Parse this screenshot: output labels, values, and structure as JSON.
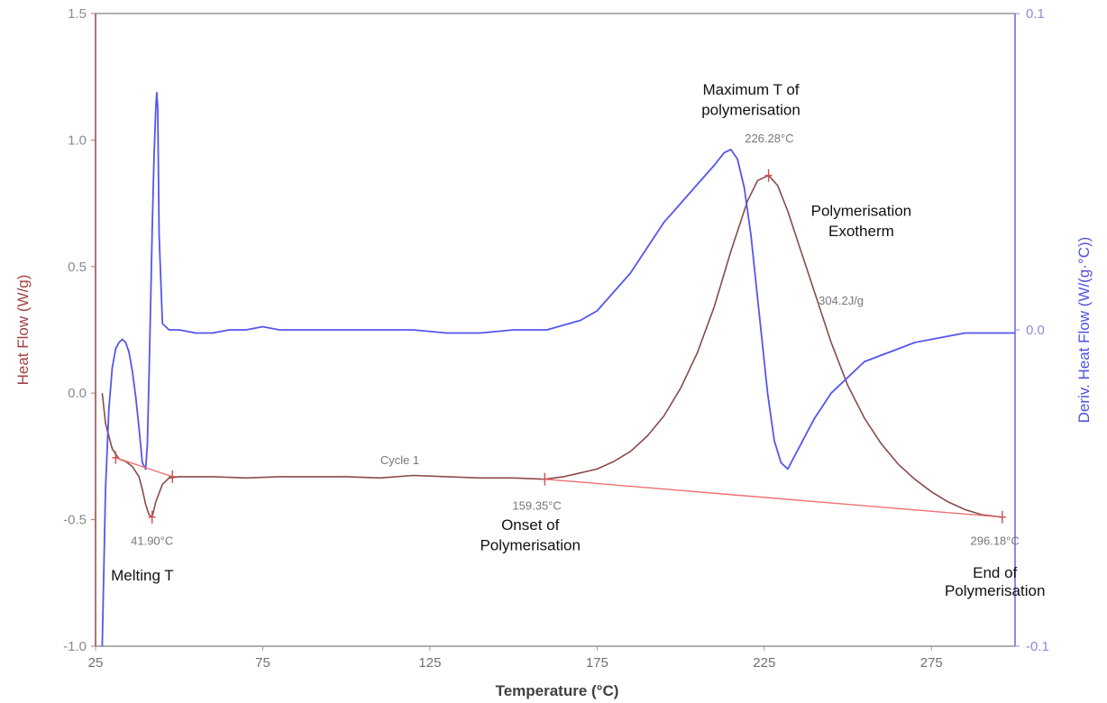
{
  "chart_data": {
    "type": "line",
    "title": "",
    "xlabel": "Temperature (°C)",
    "ylabel_left": "Heat Flow (W/g)",
    "ylabel_right": "Deriv. Heat Flow (W/(g·°C))",
    "xlim": [
      25,
      300
    ],
    "ylim_left": [
      -1.0,
      1.5
    ],
    "ylim_right": [
      -0.1,
      0.1
    ],
    "x_ticks": [
      "25",
      "75",
      "125",
      "175",
      "225",
      "275"
    ],
    "x_tick_values": [
      25,
      75,
      125,
      175,
      225,
      275
    ],
    "y_left_ticks": [
      "1.5",
      "1.0",
      "0.5",
      "0.0",
      "-0.5",
      "-1.0"
    ],
    "y_left_tick_values": [
      1.5,
      1.0,
      0.5,
      0.0,
      -0.5,
      -1.0
    ],
    "y_right_ticks": [
      "0.1",
      "0.0",
      "-0.1"
    ],
    "y_right_tick_values": [
      0.1,
      0.0,
      -0.1
    ],
    "grid": false,
    "colors": {
      "heat_flow": "#8a4a4a",
      "deriv_heat_flow": "#5555ee",
      "baseline": "#f07070",
      "left_axis": "#b07070",
      "right_axis": "#8a8af0",
      "frame": "#b0b0b0"
    },
    "series": [
      {
        "axis": "left",
        "color": "#8a4a4a",
        "x": [
          27,
          28,
          30,
          32,
          34,
          36,
          38,
          39,
          40,
          41,
          41.9,
          43,
          45,
          47,
          50,
          55,
          60,
          70,
          80,
          90,
          100,
          110,
          120,
          130,
          140,
          150,
          159.35,
          165,
          170,
          175,
          180,
          185,
          190,
          195,
          200,
          205,
          210,
          215,
          220,
          223,
          226.28,
          229,
          232,
          235,
          240,
          245,
          250,
          255,
          260,
          265,
          270,
          275,
          280,
          285,
          290,
          296.18
        ],
        "values": [
          0.0,
          -0.12,
          -0.22,
          -0.26,
          -0.27,
          -0.29,
          -0.33,
          -0.38,
          -0.44,
          -0.48,
          -0.49,
          -0.43,
          -0.36,
          -0.335,
          -0.33,
          -0.33,
          -0.33,
          -0.335,
          -0.33,
          -0.33,
          -0.33,
          -0.335,
          -0.325,
          -0.33,
          -0.335,
          -0.335,
          -0.34,
          -0.33,
          -0.315,
          -0.3,
          -0.27,
          -0.23,
          -0.17,
          -0.09,
          0.02,
          0.16,
          0.34,
          0.56,
          0.76,
          0.84,
          0.86,
          0.82,
          0.72,
          0.6,
          0.4,
          0.2,
          0.03,
          -0.1,
          -0.2,
          -0.28,
          -0.34,
          -0.39,
          -0.43,
          -0.46,
          -0.48,
          -0.49
        ]
      },
      {
        "axis": "right",
        "color": "#5555ee",
        "x": [
          27,
          28,
          29,
          30,
          31,
          32,
          33,
          34,
          35,
          36,
          37,
          38,
          39,
          40,
          40.5,
          41,
          41.5,
          42,
          42.5,
          43,
          43.3,
          43.6,
          44,
          45,
          47,
          50,
          55,
          60,
          65,
          70,
          75,
          80,
          90,
          100,
          110,
          120,
          130,
          140,
          150,
          160,
          170,
          175,
          180,
          185,
          190,
          195,
          200,
          205,
          210,
          213,
          215,
          217,
          219,
          221,
          222,
          224,
          226,
          228,
          230,
          232,
          234,
          236,
          238,
          240,
          245,
          250,
          255,
          260,
          265,
          270,
          275,
          280,
          285,
          290,
          295,
          300
        ],
        "values": [
          -0.1,
          -0.05,
          -0.025,
          -0.012,
          -0.006,
          -0.004,
          -0.003,
          -0.004,
          -0.007,
          -0.013,
          -0.021,
          -0.031,
          -0.042,
          -0.044,
          -0.036,
          -0.015,
          0.01,
          0.035,
          0.055,
          0.07,
          0.075,
          0.07,
          0.03,
          0.002,
          0.0,
          0.0,
          -0.001,
          -0.001,
          0.0,
          0.0,
          0.001,
          0.0,
          0.0,
          0.0,
          0.0,
          0.0,
          -0.001,
          -0.001,
          0.0,
          0.0,
          0.003,
          0.006,
          0.012,
          0.018,
          0.026,
          0.034,
          0.04,
          0.046,
          0.052,
          0.056,
          0.057,
          0.054,
          0.045,
          0.03,
          0.02,
          0.0,
          -0.02,
          -0.035,
          -0.042,
          -0.044,
          -0.04,
          -0.036,
          -0.032,
          -0.028,
          -0.02,
          -0.015,
          -0.01,
          -0.008,
          -0.006,
          -0.004,
          -0.003,
          -0.002,
          -0.001,
          -0.001,
          -0.001,
          -0.001
        ]
      }
    ],
    "baselines": [
      {
        "x": [
          31,
          48
        ],
        "values": [
          -0.255,
          -0.33
        ]
      },
      {
        "x": [
          159.35,
          296.18
        ],
        "values": [
          -0.34,
          -0.49
        ]
      }
    ],
    "markers": [
      {
        "x": 31,
        "y": -0.255
      },
      {
        "x": 41.9,
        "y": -0.49
      },
      {
        "x": 48,
        "y": -0.33
      },
      {
        "x": 159.35,
        "y": -0.34
      },
      {
        "x": 226.28,
        "y": 0.86
      },
      {
        "x": 296.18,
        "y": -0.49
      }
    ],
    "annotations": [
      {
        "text": "41.90°C",
        "style": "small",
        "x": 41.9,
        "y": -0.6,
        "anchor": "middle"
      },
      {
        "text": "Melting T",
        "style": "big",
        "x": 39,
        "y": -0.74,
        "anchor": "middle"
      },
      {
        "text": "Cycle 1",
        "style": "small",
        "x": 116,
        "y": -0.28,
        "anchor": "middle"
      },
      {
        "text": "159.35°C",
        "style": "small",
        "x": 157,
        "y": -0.46,
        "anchor": "middle"
      },
      {
        "text": "Onset of",
        "style": "big",
        "x": 155,
        "y": -0.54,
        "anchor": "middle"
      },
      {
        "text": "Polymerisation",
        "style": "big",
        "x": 155,
        "y": -0.62,
        "anchor": "middle"
      },
      {
        "text": "Maximum T of",
        "style": "big",
        "x": 221,
        "y": 1.18,
        "anchor": "middle"
      },
      {
        "text": "polymerisation",
        "style": "big",
        "x": 221,
        "y": 1.1,
        "anchor": "middle"
      },
      {
        "text": "226.28°C",
        "style": "small",
        "x": 226.5,
        "y": 0.99,
        "anchor": "middle"
      },
      {
        "text": "Polymerisation",
        "style": "big",
        "x": 254,
        "y": 0.7,
        "anchor": "middle"
      },
      {
        "text": "Exotherm",
        "style": "big",
        "x": 254,
        "y": 0.62,
        "anchor": "middle"
      },
      {
        "text": "304.2J/g",
        "style": "small",
        "x": 248,
        "y": 0.35,
        "anchor": "middle"
      },
      {
        "text": "296.18°C",
        "style": "small",
        "x": 294,
        "y": -0.6,
        "anchor": "middle"
      },
      {
        "text": "End of",
        "style": "big",
        "x": 294,
        "y": -0.73,
        "anchor": "middle"
      },
      {
        "text": "Polymerisation",
        "style": "big",
        "x": 294,
        "y": -0.8,
        "anchor": "middle"
      }
    ]
  }
}
